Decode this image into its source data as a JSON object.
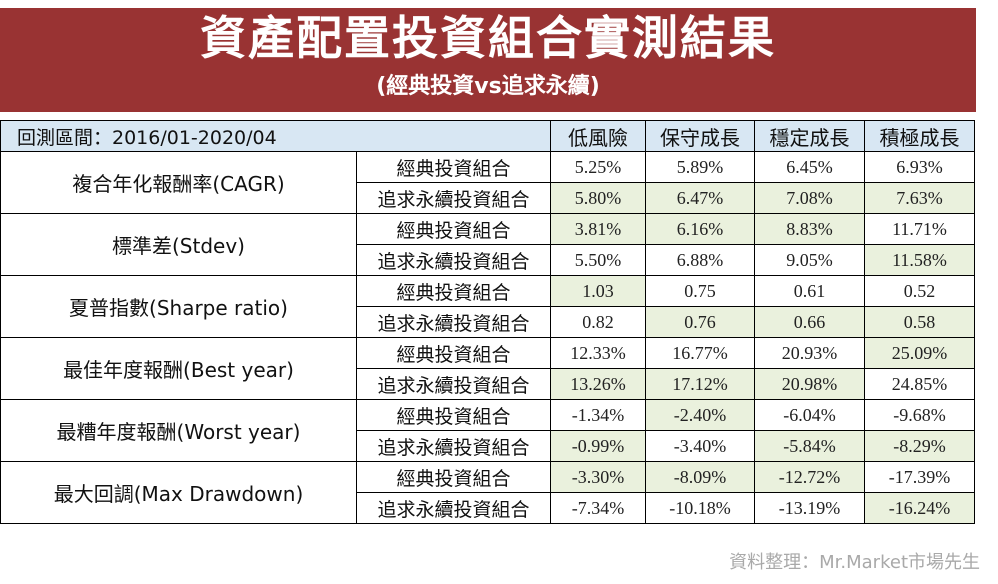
{
  "title": "資產配置投資組合實測結果",
  "subtitle": "(經典投資vs追求永續)",
  "period_label": "回測區間：2016/01-2020/04",
  "columns": [
    "低風險",
    "保守成長",
    "穩定成長",
    "積極成長"
  ],
  "portfolio_labels": [
    "經典投資組合",
    "追求永續投資組合"
  ],
  "colors": {
    "banner": "#993333",
    "header_bg": "#d8e7f3",
    "highlight_bg": "#eaf1dd"
  },
  "metrics": [
    {
      "name": "複合年化報酬率(CAGR)",
      "rows": [
        {
          "values": [
            "5.25%",
            "5.89%",
            "6.45%",
            "6.93%"
          ],
          "highlight": [
            false,
            false,
            false,
            false
          ]
        },
        {
          "values": [
            "5.80%",
            "6.47%",
            "7.08%",
            "7.63%"
          ],
          "highlight": [
            true,
            true,
            true,
            true
          ]
        }
      ]
    },
    {
      "name": "標準差(Stdev)",
      "rows": [
        {
          "values": [
            "3.81%",
            "6.16%",
            "8.83%",
            "11.71%"
          ],
          "highlight": [
            true,
            true,
            true,
            false
          ]
        },
        {
          "values": [
            "5.50%",
            "6.88%",
            "9.05%",
            "11.58%"
          ],
          "highlight": [
            false,
            false,
            false,
            true
          ]
        }
      ]
    },
    {
      "name": "夏普指數(Sharpe ratio)",
      "rows": [
        {
          "values": [
            "1.03",
            "0.75",
            "0.61",
            "0.52"
          ],
          "highlight": [
            true,
            false,
            false,
            false
          ]
        },
        {
          "values": [
            "0.82",
            "0.76",
            "0.66",
            "0.58"
          ],
          "highlight": [
            false,
            true,
            true,
            true
          ]
        }
      ]
    },
    {
      "name": "最佳年度報酬(Best year)",
      "rows": [
        {
          "values": [
            "12.33%",
            "16.77%",
            "20.93%",
            "25.09%"
          ],
          "highlight": [
            false,
            false,
            false,
            true
          ]
        },
        {
          "values": [
            "13.26%",
            "17.12%",
            "20.98%",
            "24.85%"
          ],
          "highlight": [
            true,
            true,
            true,
            false
          ]
        }
      ]
    },
    {
      "name": "最糟年度報酬(Worst year)",
      "rows": [
        {
          "values": [
            "-1.34%",
            "-2.40%",
            "-6.04%",
            "-9.68%"
          ],
          "highlight": [
            false,
            true,
            false,
            false
          ]
        },
        {
          "values": [
            "-0.99%",
            "-3.40%",
            "-5.84%",
            "-8.29%"
          ],
          "highlight": [
            true,
            false,
            true,
            true
          ]
        }
      ]
    },
    {
      "name": "最大回調(Max Drawdown)",
      "rows": [
        {
          "values": [
            "-3.30%",
            "-8.09%",
            "-12.72%",
            "-17.39%"
          ],
          "highlight": [
            true,
            true,
            true,
            false
          ]
        },
        {
          "values": [
            "-7.34%",
            "-10.18%",
            "-13.19%",
            "-16.24%"
          ],
          "highlight": [
            false,
            false,
            false,
            true
          ]
        }
      ]
    }
  ],
  "source": "資料整理：Mr.Market市場先生"
}
